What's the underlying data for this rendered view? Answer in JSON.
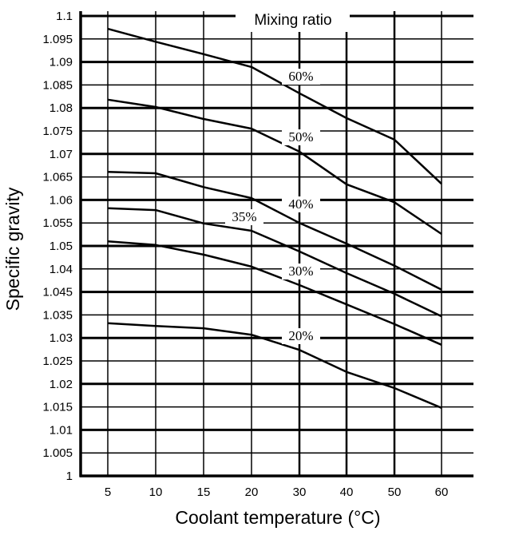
{
  "chart_data": {
    "type": "line",
    "title": "",
    "legend_title": "Mixing ratio",
    "xlabel": "Coolant temperature (°C)",
    "ylabel": "Specific gravity",
    "x_tick_labels": [
      "5",
      "10",
      "15",
      "20",
      "30",
      "40",
      "50",
      "60"
    ],
    "x": [
      5,
      10,
      15,
      20,
      30,
      40,
      50,
      60
    ],
    "y_tick_labels": [
      "1.1",
      "1.095",
      "1.09",
      "1.085",
      "1.08",
      "1.075",
      "1.07",
      "1.065",
      "1.06",
      "1.055",
      "1.05",
      "1.04",
      "1.045",
      "1.035",
      "1.03",
      "1.025",
      "1.02",
      "1.015",
      "1.01",
      "1.005",
      "1"
    ],
    "ylim": [
      1.0,
      1.1
    ],
    "grid": true,
    "series": [
      {
        "name": "60%",
        "values": [
          1.0972,
          1.0944,
          1.0917,
          1.0889,
          1.0832,
          1.0778,
          1.0731,
          1.0635
        ]
      },
      {
        "name": "50%",
        "values": [
          1.0818,
          1.0802,
          1.0776,
          1.0755,
          1.0705,
          1.0634,
          1.0595,
          1.0526
        ]
      },
      {
        "name": "40%",
        "values": [
          1.0661,
          1.0658,
          1.0628,
          1.0604,
          1.055,
          1.0505,
          1.0457,
          1.0405
        ]
      },
      {
        "name": "35%",
        "values": [
          1.0582,
          1.0578,
          1.0549,
          1.0533,
          1.0488,
          1.0441,
          1.0396,
          1.0347
        ]
      },
      {
        "name": "30%",
        "values": [
          1.051,
          1.0502,
          1.0481,
          1.0455,
          1.0415,
          1.0373,
          1.033,
          1.0285
        ]
      },
      {
        "name": "20%",
        "values": [
          1.0332,
          1.0326,
          1.0321,
          1.0307,
          1.0274,
          1.0226,
          1.0191,
          1.0148
        ]
      }
    ]
  }
}
